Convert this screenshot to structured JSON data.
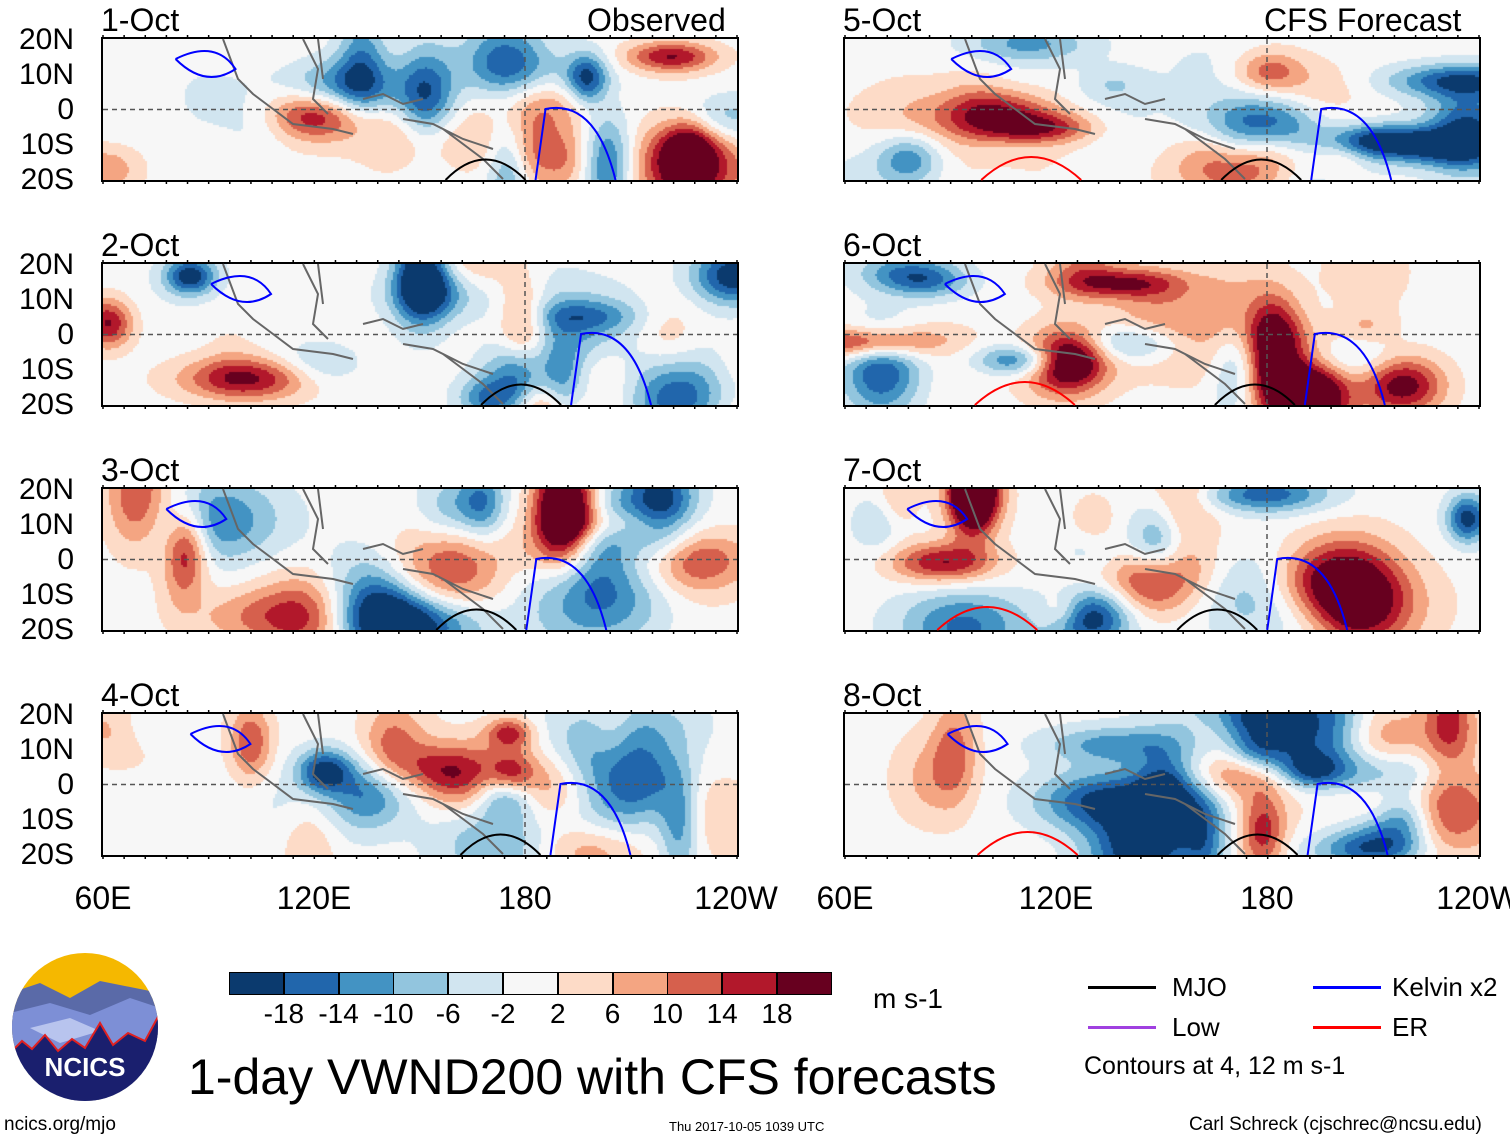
{
  "figure": {
    "title": "1-day VWND200 with CFS forecasts",
    "observed_label": "Observed",
    "forecast_label": "CFS Forecast",
    "units": "m s-1",
    "url": "ncics.org/mjo",
    "timestamp": "Thu 2017-10-05 1039 UTC",
    "author": "Carl Schreck (cjschrec@ncsu.edu)",
    "logo_text": "NCICS"
  },
  "panels": {
    "observed": [
      "1-Oct",
      "2-Oct",
      "3-Oct",
      "4-Oct"
    ],
    "forecast": [
      "5-Oct",
      "6-Oct",
      "7-Oct",
      "8-Oct"
    ]
  },
  "lat_labels": [
    "20N",
    "10N",
    "0",
    "10S",
    "20S"
  ],
  "lon_labels": [
    "60E",
    "120E",
    "180",
    "120W"
  ],
  "colorbar": {
    "labels": [
      "-18",
      "-14",
      "-10",
      "-6",
      "-2",
      "2",
      "6",
      "10",
      "14",
      "18"
    ],
    "colors": [
      "#0b3a6e",
      "#2166ac",
      "#4393c3",
      "#92c5de",
      "#d1e5f0",
      "#f7f7f7",
      "#fddbc7",
      "#f4a582",
      "#d6604d",
      "#b2182b",
      "#67001f"
    ]
  },
  "legend": {
    "items": [
      {
        "label": "MJO",
        "color": "#000000"
      },
      {
        "label": "Kelvin x2",
        "color": "#0000ff"
      },
      {
        "label": "Low",
        "color": "#a040e0"
      },
      {
        "label": "ER",
        "color": "#ff0000"
      }
    ],
    "note": "Contours at 4, 12 m s-1"
  }
}
